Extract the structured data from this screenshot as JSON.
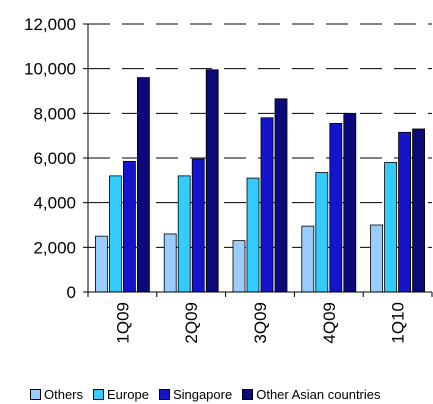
{
  "chart_data": {
    "type": "bar",
    "categories": [
      "1Q09",
      "2Q09",
      "3Q09",
      "4Q09",
      "1Q10"
    ],
    "series": [
      {
        "name": "Others",
        "color": "#99ccff",
        "values": [
          2500,
          2600,
          2300,
          2950,
          3000
        ]
      },
      {
        "name": "Europe",
        "color": "#33ccff",
        "values": [
          5200,
          5200,
          5100,
          5350,
          5800
        ]
      },
      {
        "name": "Singapore",
        "color": "#1414cc",
        "values": [
          5850,
          5950,
          7800,
          7550,
          7150
        ]
      },
      {
        "name": "Other Asian countries",
        "color": "#0a0a7a",
        "values": [
          9600,
          9950,
          8650,
          8000,
          7300
        ]
      }
    ],
    "ylim": [
      0,
      12000
    ],
    "yticks": [
      0,
      2000,
      4000,
      6000,
      8000,
      10000,
      12000
    ],
    "ytick_labels": [
      "0",
      "2,000",
      "4,000",
      "6,000",
      "8,000",
      "10,000",
      "12,000"
    ],
    "gridlines": "dashed",
    "legend_position": "bottom"
  }
}
